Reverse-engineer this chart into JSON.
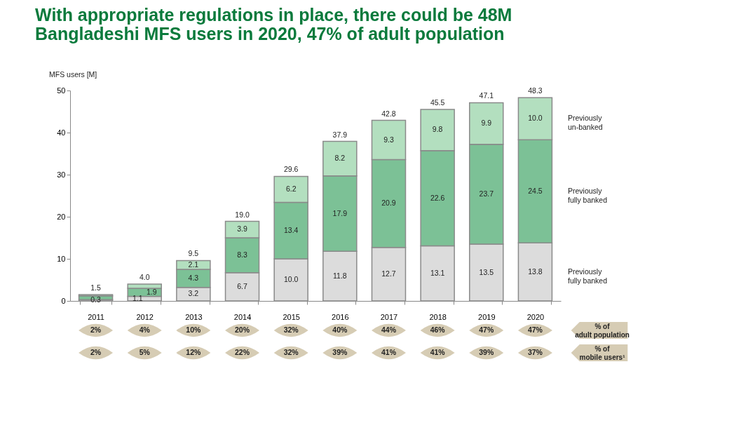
{
  "chart_data": {
    "type": "bar",
    "stacked": true,
    "title": "With appropriate regulations in place, there could be 48M Bangladeshi MFS users in 2020, 47% of adult population",
    "ylabel": "MFS users [M]",
    "categories": [
      "2011",
      "2012",
      "2013",
      "2014",
      "2015",
      "2016",
      "2017",
      "2018",
      "2019",
      "2020"
    ],
    "series": [
      {
        "name": "Previously fully banked",
        "color": "#dcdcdc",
        "values": [
          0.3,
          1.1,
          3.2,
          6.7,
          10.0,
          11.8,
          12.7,
          13.1,
          13.5,
          13.8
        ],
        "value_labels": [
          "0.3",
          "1.1",
          "3.2",
          "6.7",
          "10.0",
          "11.8",
          "12.7",
          "13.1",
          "13.5",
          "13.8"
        ]
      },
      {
        "name": "Previously fully banked",
        "color": "#7cc196",
        "values": [
          0.9,
          1.9,
          4.3,
          8.3,
          13.4,
          17.9,
          20.9,
          22.6,
          23.7,
          24.5
        ],
        "value_labels": [
          null,
          "1.9",
          "4.3",
          "8.3",
          "13.4",
          "17.9",
          "20.9",
          "22.6",
          "23.7",
          "24.5"
        ]
      },
      {
        "name": "Previously un-banked",
        "color": "#b3dfbf",
        "values": [
          0.3,
          1.0,
          2.1,
          3.9,
          6.2,
          8.2,
          9.3,
          9.8,
          9.9,
          10.0
        ],
        "value_labels": [
          null,
          null,
          "2.1",
          "3.9",
          "6.2",
          "8.2",
          "9.3",
          "9.8",
          "9.9",
          "10.0"
        ]
      }
    ],
    "totals": [
      "1.5",
      "4.0",
      "9.5",
      "19.0",
      "29.6",
      "37.9",
      "42.8",
      "45.5",
      "47.1",
      "48.3"
    ],
    "ylim": [
      0,
      50
    ],
    "yticks": [
      0,
      10,
      20,
      30,
      40,
      50
    ],
    "grid": false,
    "legend": false,
    "annotations": [
      "% of adult population",
      "2%",
      "4%",
      "10%",
      "20%",
      "32%",
      "40%",
      "44%",
      "46%",
      "47%",
      "47%",
      "% of mobile users¹",
      "2%",
      "5%",
      "12%",
      "22%",
      "32%",
      "39%",
      "41%",
      "41%",
      "39%",
      "37%"
    ]
  }
}
